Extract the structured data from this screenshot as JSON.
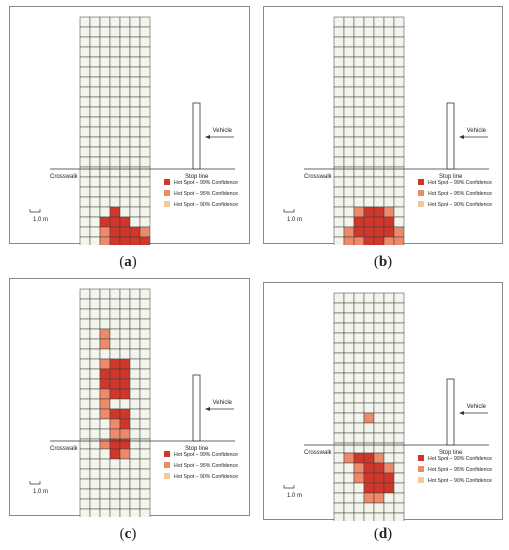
{
  "labels": {
    "crosswalk": "Crosswalk",
    "stop_line": "Stop line",
    "vehicle": "Vehicle",
    "scale": "1.0 m"
  },
  "colors": {
    "c99": "#d1362b",
    "c95": "#ec8a6a",
    "c90": "#f7c79a",
    "grid_fill": "#f3f4ec",
    "grid_line": "#3d3d3d"
  },
  "legend": [
    {
      "level": "99",
      "label": "Hot Spot – 99% Confidence"
    },
    {
      "level": "95",
      "label": "Hot Spot – 95% Confidence"
    },
    {
      "level": "90",
      "label": "Hot Spot – 90% Confidence"
    }
  ],
  "grid": {
    "cols": 7,
    "rows": 25
  },
  "panels": [
    {
      "id": "a",
      "caption_open": "(",
      "caption_letter": "a",
      "caption_close": ")",
      "hotspots": {
        "99": [
          [
            3,
            19
          ],
          [
            2,
            20
          ],
          [
            3,
            20
          ],
          [
            4,
            20
          ],
          [
            3,
            21
          ],
          [
            4,
            21
          ],
          [
            5,
            21
          ],
          [
            3,
            22
          ],
          [
            4,
            22
          ],
          [
            5,
            22
          ],
          [
            6,
            22
          ],
          [
            4,
            23
          ],
          [
            5,
            23
          ],
          [
            6,
            23
          ]
        ],
        "95": [
          [
            2,
            21
          ],
          [
            2,
            22
          ],
          [
            2,
            23
          ],
          [
            6,
            21
          ],
          [
            5,
            24
          ]
        ],
        "90": []
      }
    },
    {
      "id": "b",
      "caption_open": "(",
      "caption_letter": "b",
      "caption_close": ")",
      "hotspots": {
        "99": [
          [
            3,
            19
          ],
          [
            4,
            19
          ],
          [
            2,
            20
          ],
          [
            3,
            20
          ],
          [
            4,
            20
          ],
          [
            5,
            20
          ],
          [
            2,
            21
          ],
          [
            3,
            21
          ],
          [
            4,
            21
          ],
          [
            5,
            21
          ],
          [
            3,
            22
          ],
          [
            4,
            22
          ]
        ],
        "95": [
          [
            2,
            19
          ],
          [
            5,
            19
          ],
          [
            1,
            21
          ],
          [
            6,
            21
          ],
          [
            1,
            22
          ],
          [
            2,
            22
          ],
          [
            5,
            22
          ],
          [
            6,
            22
          ]
        ],
        "90": [
          [
            3,
            23
          ],
          [
            4,
            23
          ],
          [
            2,
            23
          ],
          [
            5,
            23
          ]
        ]
      }
    },
    {
      "id": "c",
      "caption_open": "(",
      "caption_letter": "c",
      "caption_close": ")",
      "hotspots": {
        "99": [
          [
            3,
            7
          ],
          [
            4,
            7
          ],
          [
            2,
            8
          ],
          [
            3,
            8
          ],
          [
            4,
            8
          ],
          [
            2,
            9
          ],
          [
            3,
            9
          ],
          [
            4,
            9
          ],
          [
            3,
            10
          ],
          [
            4,
            10
          ],
          [
            3,
            12
          ],
          [
            4,
            12
          ],
          [
            4,
            13
          ],
          [
            3,
            15
          ],
          [
            4,
            15
          ],
          [
            3,
            16
          ]
        ],
        "95": [
          [
            2,
            4
          ],
          [
            2,
            5
          ],
          [
            2,
            7
          ],
          [
            2,
            10
          ],
          [
            2,
            11
          ],
          [
            2,
            12
          ],
          [
            3,
            13
          ],
          [
            3,
            14
          ],
          [
            4,
            14
          ],
          [
            2,
            15
          ],
          [
            4,
            16
          ]
        ],
        "90": []
      }
    },
    {
      "id": "d",
      "caption_open": "(",
      "caption_letter": "d",
      "caption_close": ")",
      "hotspots": {
        "99": [
          [
            2,
            16
          ],
          [
            3,
            16
          ],
          [
            3,
            17
          ],
          [
            4,
            17
          ],
          [
            3,
            18
          ],
          [
            4,
            18
          ],
          [
            5,
            18
          ],
          [
            4,
            19
          ],
          [
            5,
            19
          ],
          [
            3,
            19
          ]
        ],
        "95": [
          [
            3,
            12
          ],
          [
            1,
            16
          ],
          [
            4,
            16
          ],
          [
            2,
            17
          ],
          [
            5,
            17
          ],
          [
            2,
            18
          ],
          [
            3,
            20
          ],
          [
            4,
            20
          ]
        ],
        "90": []
      }
    }
  ]
}
